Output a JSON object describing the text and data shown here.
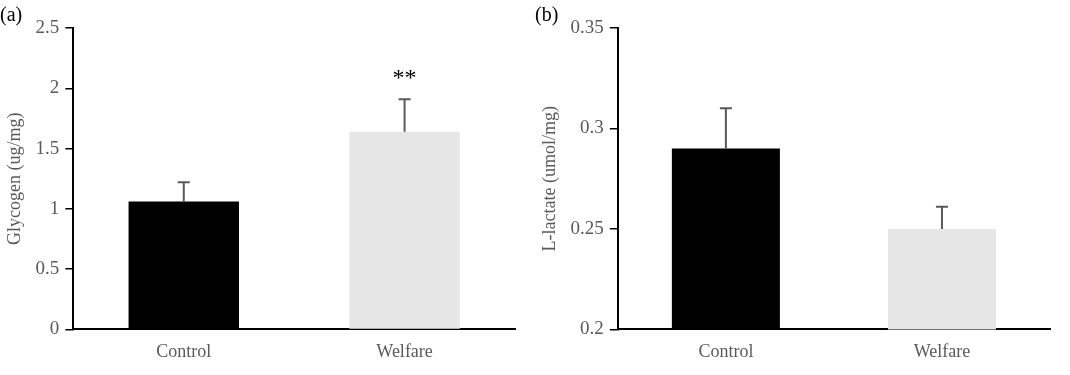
{
  "chart_data": [
    {
      "type": "bar",
      "title": "(a)",
      "ylabel": "Glycogen (ug/mg)",
      "categories": [
        "Control",
        "Welfare"
      ],
      "values": [
        1.06,
        1.64
      ],
      "colors": [
        "#000000",
        "#e6e6e6"
      ],
      "errors": [
        [
          1.06,
          1.22
        ],
        [
          1.64,
          1.91
        ]
      ],
      "ylim": [
        0,
        2.5
      ],
      "yticks": [
        0,
        {
          "value": 0.5,
          "label": "0.5"
        },
        1,
        {
          "value": 1.5,
          "label": "1.5"
        },
        2,
        {
          "value": 2.5,
          "label": "2.5"
        }
      ],
      "grid": false,
      "legend": false,
      "annotations": [
        "**"
      ]
    },
    {
      "type": "bar",
      "title": "(b)",
      "ylabel": "L-lactate (umol/mg)",
      "categories": [
        "Control",
        "Welfare"
      ],
      "values": [
        0.29,
        0.25
      ],
      "colors": [
        "#000000",
        "#e6e6e6"
      ],
      "errors": [
        [
          0.29,
          0.31
        ],
        [
          0.25,
          0.261
        ]
      ],
      "ylim": [
        0.2,
        0.35
      ],
      "yticks": [
        {
          "value": 0.2,
          "label": "0.2"
        },
        {
          "value": 0.25,
          "label": "0.25"
        },
        {
          "value": 0.3,
          "label": "0.3"
        },
        {
          "value": 0.35,
          "label": "0.35"
        }
      ],
      "grid": false,
      "legend": false
    }
  ]
}
